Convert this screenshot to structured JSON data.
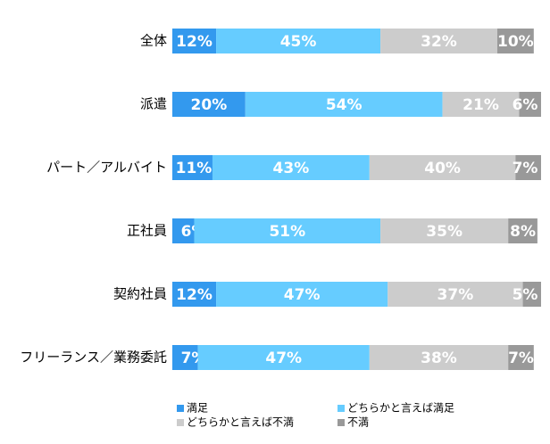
{
  "chart_data": {
    "type": "stacked-bar-horizontal",
    "categories": [
      "全体",
      "派遣",
      "パート／アルバイト",
      "正社員",
      "契約社員",
      "フリーランス／業務委託"
    ],
    "series": [
      {
        "name": "満足",
        "color": "#3399ee",
        "values": [
          12,
          20,
          11,
          6,
          12,
          7
        ],
        "value_labels": [
          "12%",
          "20%",
          "11%",
          "6%",
          "12%",
          "7%"
        ]
      },
      {
        "name": "どちらかと言えば満足",
        "color": "#66ccff",
        "values": [
          45,
          54,
          43,
          51,
          47,
          47
        ],
        "value_labels": [
          "45%",
          "54%",
          "43%",
          "51%",
          "47%",
          "47%"
        ]
      },
      {
        "name": "どちらかと言えば不満",
        "color": "#cccccc",
        "values": [
          32,
          21,
          40,
          35,
          37,
          38
        ],
        "value_labels": [
          "32%",
          "21%",
          "40%",
          "35%",
          "37%",
          "38%"
        ]
      },
      {
        "name": "不満",
        "color": "#999999",
        "values": [
          10,
          6,
          7,
          8,
          5,
          7
        ],
        "value_labels": [
          "10%",
          "6%",
          "7%",
          "8%",
          "5%",
          "7%"
        ]
      }
    ],
    "xlim": [
      0,
      101
    ]
  }
}
